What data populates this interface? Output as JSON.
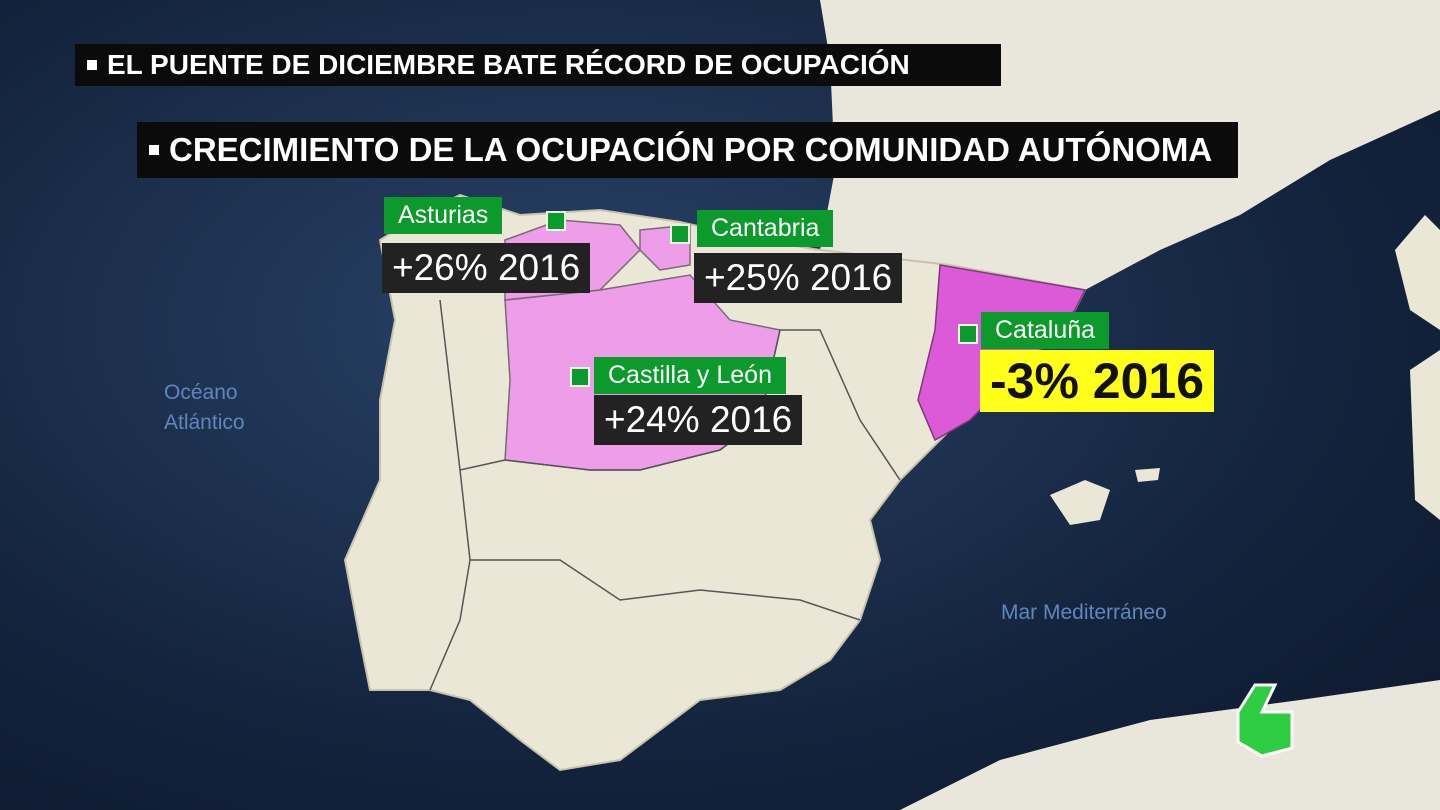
{
  "header": {
    "title": "EL PUENTE DE DICIEMBRE BATE RÉCORD DE OCUPACIÓN",
    "subtitle": "CRECIMIENTO DE LA OCUPACIÓN POR COMUNIDAD AUTÓNOMA"
  },
  "regions": [
    {
      "name": "Asturias",
      "value": "+26% 2016"
    },
    {
      "name": "Cantabria",
      "value": "+25% 2016"
    },
    {
      "name": "Castilla y León",
      "value": "+24% 2016"
    },
    {
      "name": "Cataluña",
      "value": "-3% 2016"
    }
  ],
  "seas": {
    "atlantic": [
      "Océano",
      "Atlántico"
    ],
    "mediterranean": "Mar Mediterráneo"
  }
}
